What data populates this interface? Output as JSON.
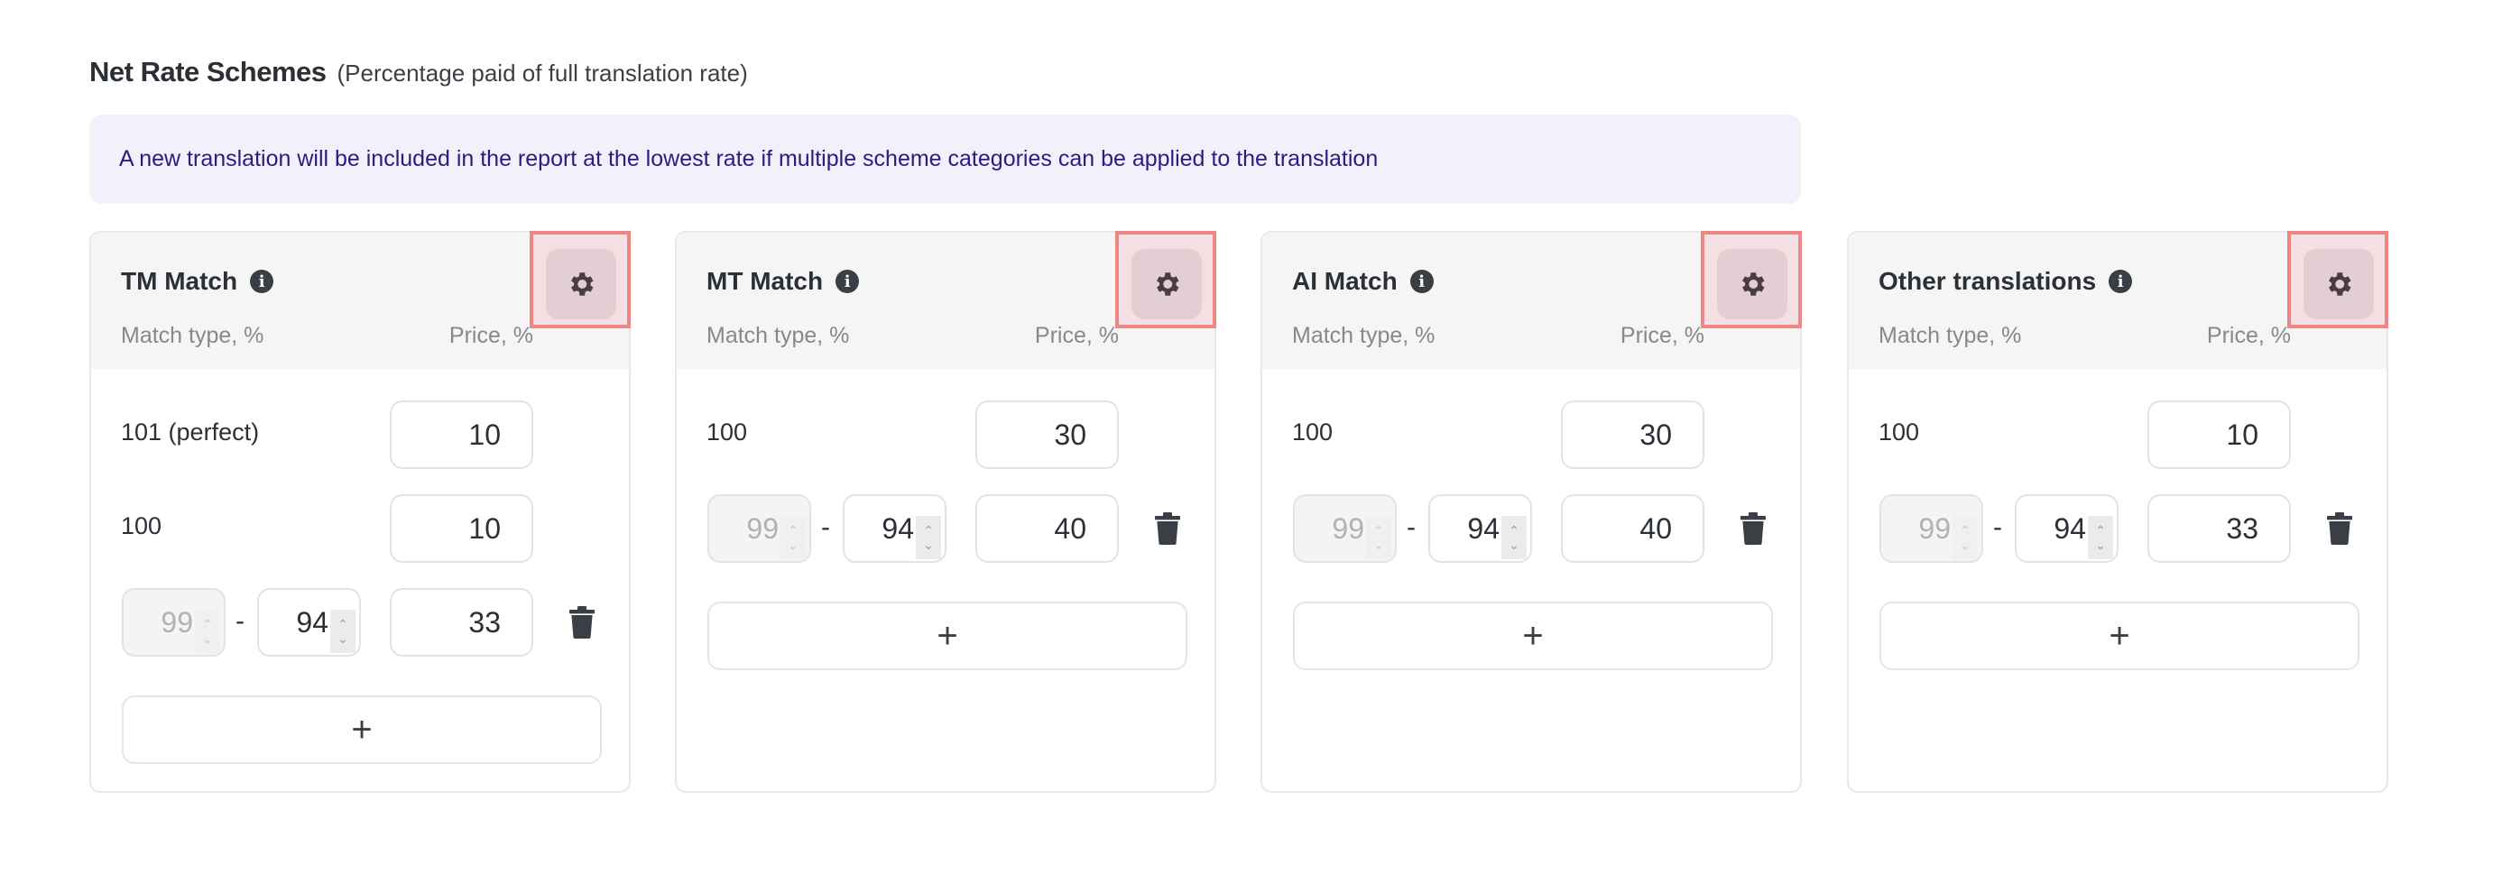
{
  "header": {
    "title": "Net Rate Schemes",
    "subtitle": "(Percentage paid of full translation rate)"
  },
  "banner": {
    "text": "A new translation will be included in the report at the lowest rate if multiple scheme categories can be applied to the translation"
  },
  "colors": {
    "banner_bg": "#f2f0fb",
    "banner_text": "#2e1a87",
    "highlight_border": "#f08585",
    "gear_bg": "#e3cfd3"
  },
  "cards": [
    {
      "title": "TM Match",
      "col_match": "Match type, %",
      "col_price": "Price, %",
      "info_icon": "info-icon",
      "fixed_rows": [
        {
          "label": "101 (perfect)",
          "price": "10"
        },
        {
          "label": "100",
          "price": "10"
        }
      ],
      "range_rows": [
        {
          "from": "99",
          "to": "94",
          "price": "33"
        }
      ],
      "add_label": "+"
    },
    {
      "title": "MT Match",
      "col_match": "Match type, %",
      "col_price": "Price, %",
      "info_icon": "info-icon",
      "fixed_rows": [
        {
          "label": "100",
          "price": "30"
        }
      ],
      "range_rows": [
        {
          "from": "99",
          "to": "94",
          "price": "40"
        }
      ],
      "add_label": "+"
    },
    {
      "title": "AI Match",
      "col_match": "Match type, %",
      "col_price": "Price, %",
      "info_icon": "info-icon",
      "fixed_rows": [
        {
          "label": "100",
          "price": "30"
        }
      ],
      "range_rows": [
        {
          "from": "99",
          "to": "94",
          "price": "40"
        }
      ],
      "add_label": "+"
    },
    {
      "title": "Other translations",
      "col_match": "Match type, %",
      "col_price": "Price, %",
      "info_icon": "info-icon",
      "fixed_rows": [
        {
          "label": "100",
          "price": "10"
        }
      ],
      "range_rows": [
        {
          "from": "99",
          "to": "94",
          "price": "33"
        }
      ],
      "add_label": "+"
    }
  ],
  "range_separator": "-",
  "info_glyph": "i"
}
